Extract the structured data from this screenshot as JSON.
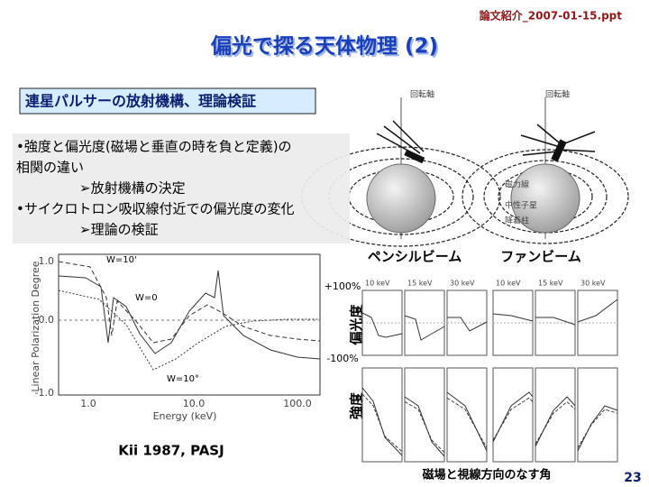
{
  "header": {
    "file": "論文紹介_2007-01-15.ppt",
    "title": "偏光で探る天体物理 (2)"
  },
  "section": {
    "heading": "連星パルサーの放射機構、理論検証",
    "bullets": [
      "•強度と偏光度(磁場と垂直の時を負と定義)の",
      "相関の違い",
      "➢放射機構の決定",
      "•サイクロトロン吸収線付近での偏光度の変化",
      "➢理論の検証"
    ]
  },
  "diagram": {
    "labels": [
      "回転軸",
      "回転軸",
      "磁力線",
      "中性子星",
      "降着柱"
    ]
  },
  "figure_left": {
    "ylabel": "Linear Polarization Degree",
    "xlabel": "Energy   (keV)",
    "yticks": [
      "1.0",
      "0.0",
      "-1.0"
    ],
    "xticks": [
      "1.0",
      "10.0",
      "100.0"
    ],
    "curve_labels": [
      "W=10'",
      "W=0",
      "W=10°"
    ],
    "citation": "Kii 1987, PASJ"
  },
  "figure_right": {
    "beams": [
      "ペンシルビーム",
      "ファンビーム"
    ],
    "top": "+100%",
    "polarization": "偏光度",
    "bottom": "-100%",
    "intensity": "強度",
    "energies": [
      "10 keV",
      "15 keV",
      "30 keV"
    ],
    "xlabel": "磁場と視線方向のなす角"
  },
  "page_number": "23"
}
